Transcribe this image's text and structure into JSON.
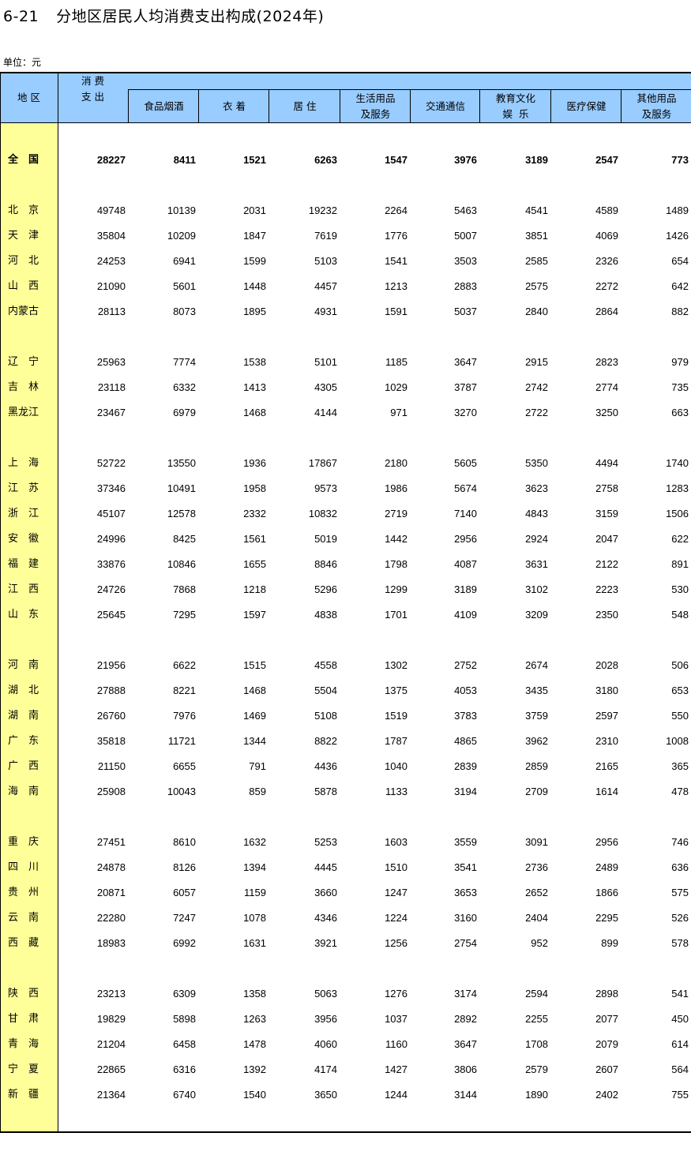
{
  "title": {
    "number": "6-21",
    "text": "分地区居民人均消费支出构成(2024年)"
  },
  "unit": "单位：元",
  "headers": {
    "region": "地 区",
    "total_line1": "消 费",
    "total_line2": "支 出",
    "columns": [
      [
        "食品烟酒"
      ],
      [
        "衣 着"
      ],
      [
        "居 住"
      ],
      [
        "生活用品",
        "及服务"
      ],
      [
        "交通通信"
      ],
      [
        "教育文化",
        "娱  乐"
      ],
      [
        "医疗保健"
      ],
      [
        "其他用品",
        "及服务"
      ]
    ]
  },
  "rows": [
    null,
    {
      "region": "全国",
      "bold": true,
      "values": [
        28227,
        8411,
        1521,
        6263,
        1547,
        3976,
        3189,
        2547,
        773
      ]
    },
    null,
    {
      "region": "北京",
      "values": [
        49748,
        10139,
        2031,
        19232,
        2264,
        5463,
        4541,
        4589,
        1489
      ]
    },
    {
      "region": "天津",
      "values": [
        35804,
        10209,
        1847,
        7619,
        1776,
        5007,
        3851,
        4069,
        1426
      ]
    },
    {
      "region": "河北",
      "values": [
        24253,
        6941,
        1599,
        5103,
        1541,
        3503,
        2585,
        2326,
        654
      ]
    },
    {
      "region": "山西",
      "values": [
        21090,
        5601,
        1448,
        4457,
        1213,
        2883,
        2575,
        2272,
        642
      ]
    },
    {
      "region": "内蒙古",
      "values": [
        28113,
        8073,
        1895,
        4931,
        1591,
        5037,
        2840,
        2864,
        882
      ]
    },
    null,
    {
      "region": "辽宁",
      "values": [
        25963,
        7774,
        1538,
        5101,
        1185,
        3647,
        2915,
        2823,
        979
      ]
    },
    {
      "region": "吉林",
      "values": [
        23118,
        6332,
        1413,
        4305,
        1029,
        3787,
        2742,
        2774,
        735
      ]
    },
    {
      "region": "黑龙江",
      "values": [
        23467,
        6979,
        1468,
        4144,
        971,
        3270,
        2722,
        3250,
        663
      ]
    },
    null,
    {
      "region": "上海",
      "values": [
        52722,
        13550,
        1936,
        17867,
        2180,
        5605,
        5350,
        4494,
        1740
      ]
    },
    {
      "region": "江苏",
      "values": [
        37346,
        10491,
        1958,
        9573,
        1986,
        5674,
        3623,
        2758,
        1283
      ]
    },
    {
      "region": "浙江",
      "values": [
        45107,
        12578,
        2332,
        10832,
        2719,
        7140,
        4843,
        3159,
        1506
      ]
    },
    {
      "region": "安徽",
      "values": [
        24996,
        8425,
        1561,
        5019,
        1442,
        2956,
        2924,
        2047,
        622
      ]
    },
    {
      "region": "福建",
      "values": [
        33876,
        10846,
        1655,
        8846,
        1798,
        4087,
        3631,
        2122,
        891
      ]
    },
    {
      "region": "江西",
      "values": [
        24726,
        7868,
        1218,
        5296,
        1299,
        3189,
        3102,
        2223,
        530
      ]
    },
    {
      "region": "山东",
      "values": [
        25645,
        7295,
        1597,
        4838,
        1701,
        4109,
        3209,
        2350,
        548
      ]
    },
    null,
    {
      "region": "河南",
      "values": [
        21956,
        6622,
        1515,
        4558,
        1302,
        2752,
        2674,
        2028,
        506
      ]
    },
    {
      "region": "湖北",
      "values": [
        27888,
        8221,
        1468,
        5504,
        1375,
        4053,
        3435,
        3180,
        653
      ]
    },
    {
      "region": "湖南",
      "values": [
        26760,
        7976,
        1469,
        5108,
        1519,
        3783,
        3759,
        2597,
        550
      ]
    },
    {
      "region": "广东",
      "values": [
        35818,
        11721,
        1344,
        8822,
        1787,
        4865,
        3962,
        2310,
        1008
      ]
    },
    {
      "region": "广西",
      "values": [
        21150,
        6655,
        791,
        4436,
        1040,
        2839,
        2859,
        2165,
        365
      ]
    },
    {
      "region": "海南",
      "values": [
        25908,
        10043,
        859,
        5878,
        1133,
        3194,
        2709,
        1614,
        478
      ]
    },
    null,
    {
      "region": "重庆",
      "values": [
        27451,
        8610,
        1632,
        5253,
        1603,
        3559,
        3091,
        2956,
        746
      ]
    },
    {
      "region": "四川",
      "values": [
        24878,
        8126,
        1394,
        4445,
        1510,
        3541,
        2736,
        2489,
        636
      ]
    },
    {
      "region": "贵州",
      "values": [
        20871,
        6057,
        1159,
        3660,
        1247,
        3653,
        2652,
        1866,
        575
      ]
    },
    {
      "region": "云南",
      "values": [
        22280,
        7247,
        1078,
        4346,
        1224,
        3160,
        2404,
        2295,
        526
      ]
    },
    {
      "region": "西藏",
      "values": [
        18983,
        6992,
        1631,
        3921,
        1256,
        2754,
        952,
        899,
        578
      ]
    },
    null,
    {
      "region": "陕西",
      "values": [
        23213,
        6309,
        1358,
        5063,
        1276,
        3174,
        2594,
        2898,
        541
      ]
    },
    {
      "region": "甘肃",
      "values": [
        19829,
        5898,
        1263,
        3956,
        1037,
        2892,
        2255,
        2077,
        450
      ]
    },
    {
      "region": "青海",
      "values": [
        21204,
        6458,
        1478,
        4060,
        1160,
        3647,
        1708,
        2079,
        614
      ]
    },
    {
      "region": "宁夏",
      "values": [
        22865,
        6316,
        1392,
        4174,
        1427,
        3806,
        2579,
        2607,
        564
      ]
    },
    {
      "region": "新疆",
      "values": [
        21364,
        6740,
        1540,
        3650,
        1244,
        3144,
        1890,
        2402,
        755
      ]
    }
  ],
  "colors": {
    "header_bg": "#99ccff",
    "region_col_bg": "#ffff99"
  }
}
